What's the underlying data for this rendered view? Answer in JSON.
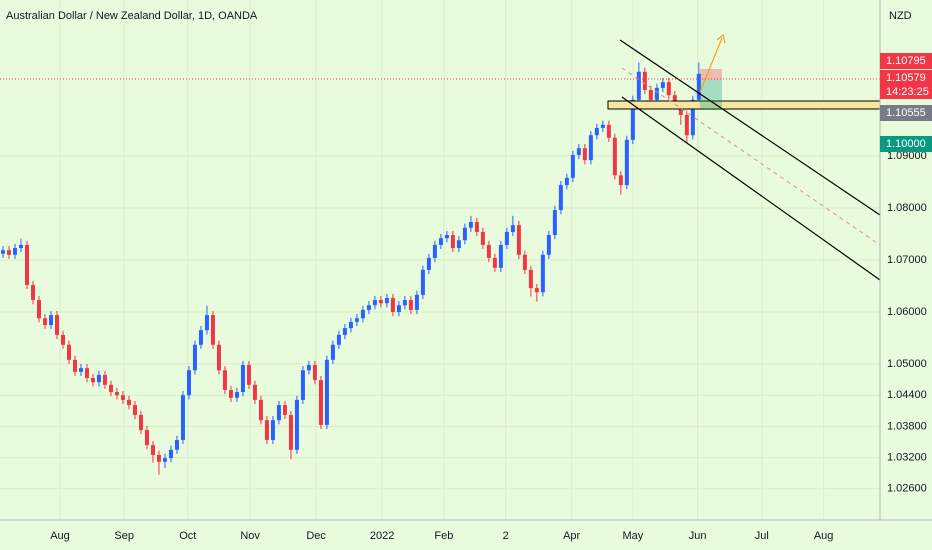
{
  "chart_data": {
    "type": "candlestick",
    "title": "Australian Dollar / New Zealand Dollar, 1D, OANDA",
    "y_axis_label": "NZD",
    "price_tags": [
      "1.10795",
      "1.10579",
      "14:23:25",
      "1.10555",
      "1.10000"
    ],
    "up_color": "#2962ff",
    "down_color": "#f23645",
    "grid": true,
    "ylim": [
      1.02,
      1.12
    ],
    "yticks": [
      {
        "value": 1.026,
        "label": "1.02600"
      },
      {
        "value": 1.032,
        "label": "1.03200"
      },
      {
        "value": 1.038,
        "label": "1.03800"
      },
      {
        "value": 1.044,
        "label": "1.04400"
      },
      {
        "value": 1.05,
        "label": "1.05000"
      },
      {
        "value": 1.06,
        "label": "1.06000"
      },
      {
        "value": 1.07,
        "label": "1.07000"
      },
      {
        "value": 1.08,
        "label": "1.08000"
      },
      {
        "value": 1.09,
        "label": "1.09000"
      }
    ],
    "xlim": [
      0,
      146.7
    ],
    "xticks": [
      {
        "value": 10,
        "label": "Aug"
      },
      {
        "value": 20.7,
        "label": "Sep"
      },
      {
        "value": 31.3,
        "label": "Oct"
      },
      {
        "value": 41.7,
        "label": "Nov"
      },
      {
        "value": 52.7,
        "label": "Dec"
      },
      {
        "value": 63.7,
        "label": "2022"
      },
      {
        "value": 74,
        "label": "Feb"
      },
      {
        "value": 84.3,
        "label": "2"
      },
      {
        "value": 95.3,
        "label": "Apr"
      },
      {
        "value": 105.5,
        "label": "May"
      },
      {
        "value": 116.3,
        "label": "Jun"
      },
      {
        "value": 127,
        "label": "Jul"
      },
      {
        "value": 137.3,
        "label": "Aug"
      }
    ],
    "candles": [
      [
        1.0712,
        1.0727,
        1.0704,
        1.0719
      ],
      [
        1.0719,
        1.0727,
        1.0702,
        1.071
      ],
      [
        1.071,
        1.0731,
        1.0702,
        1.0723
      ],
      [
        1.0723,
        1.0741,
        1.0715,
        1.0729
      ],
      [
        1.0729,
        1.0737,
        1.0644,
        1.0652
      ],
      [
        1.0652,
        1.066,
        1.0615,
        1.0623
      ],
      [
        1.0623,
        1.0631,
        1.058,
        1.0588
      ],
      [
        1.0588,
        1.0596,
        1.0567,
        1.0575
      ],
      [
        1.0575,
        1.0602,
        1.0567,
        1.0594
      ],
      [
        1.0594,
        1.0602,
        1.0548,
        1.0556
      ],
      [
        1.0556,
        1.0564,
        1.0529,
        1.0537
      ],
      [
        1.0537,
        1.0545,
        1.05,
        1.0508
      ],
      [
        1.0508,
        1.0516,
        1.0477,
        1.0485
      ],
      [
        1.0485,
        1.05,
        1.0477,
        1.0492
      ],
      [
        1.0492,
        1.05,
        1.0465,
        1.0473
      ],
      [
        1.0473,
        1.0481,
        1.0457,
        1.0465
      ],
      [
        1.0465,
        1.0487,
        1.0457,
        1.0479
      ],
      [
        1.0479,
        1.0487,
        1.0452,
        1.046
      ],
      [
        1.046,
        1.0468,
        1.0438,
        1.0446
      ],
      [
        1.0446,
        1.0454,
        1.0432,
        1.044
      ],
      [
        1.044,
        1.0448,
        1.0423,
        1.0431
      ],
      [
        1.0431,
        1.0439,
        1.0413,
        1.0421
      ],
      [
        1.0421,
        1.0429,
        1.0394,
        1.0402
      ],
      [
        1.0402,
        1.041,
        1.0365,
        1.0373
      ],
      [
        1.0373,
        1.0381,
        1.0336,
        1.0344
      ],
      [
        1.0344,
        1.0352,
        1.031,
        1.0325
      ],
      [
        1.0325,
        1.0333,
        1.0287,
        1.0312
      ],
      [
        1.0312,
        1.0327,
        1.03,
        1.0319
      ],
      [
        1.0319,
        1.0343,
        1.0311,
        1.0335
      ],
      [
        1.0335,
        1.0362,
        1.0327,
        1.0354
      ],
      [
        1.0354,
        1.0448,
        1.0346,
        1.044
      ],
      [
        1.044,
        1.0496,
        1.0432,
        1.0488
      ],
      [
        1.0488,
        1.0545,
        1.048,
        1.0537
      ],
      [
        1.0537,
        1.0573,
        1.0529,
        1.0565
      ],
      [
        1.0565,
        1.0612,
        1.0557,
        1.0594
      ],
      [
        1.0594,
        1.0602,
        1.0529,
        1.0537
      ],
      [
        1.0537,
        1.0545,
        1.048,
        1.0488
      ],
      [
        1.0488,
        1.0496,
        1.0442,
        1.045
      ],
      [
        1.045,
        1.0458,
        1.0427,
        1.0435
      ],
      [
        1.0435,
        1.0454,
        1.0427,
        1.0446
      ],
      [
        1.0446,
        1.0506,
        1.0438,
        1.0498
      ],
      [
        1.0498,
        1.0506,
        1.0452,
        1.046
      ],
      [
        1.046,
        1.0468,
        1.0423,
        1.0431
      ],
      [
        1.0431,
        1.0439,
        1.0384,
        1.0392
      ],
      [
        1.0392,
        1.04,
        1.0346,
        1.0354
      ],
      [
        1.0354,
        1.04,
        1.0346,
        1.0392
      ],
      [
        1.0392,
        1.0429,
        1.0384,
        1.0421
      ],
      [
        1.0421,
        1.0429,
        1.0394,
        1.0402
      ],
      [
        1.0402,
        1.041,
        1.0317,
        1.0335
      ],
      [
        1.0335,
        1.0439,
        1.0327,
        1.0431
      ],
      [
        1.0431,
        1.0496,
        1.0423,
        1.0488
      ],
      [
        1.0488,
        1.0506,
        1.048,
        1.0498
      ],
      [
        1.0498,
        1.0506,
        1.0461,
        1.0469
      ],
      [
        1.0469,
        1.0477,
        1.0375,
        1.0383
      ],
      [
        1.0383,
        1.0516,
        1.0375,
        1.0508
      ],
      [
        1.0508,
        1.0545,
        1.05,
        1.0537
      ],
      [
        1.0537,
        1.0564,
        1.0529,
        1.0556
      ],
      [
        1.0556,
        1.0577,
        1.0548,
        1.0569
      ],
      [
        1.0569,
        1.0589,
        1.0561,
        1.0581
      ],
      [
        1.0581,
        1.0596,
        1.0573,
        1.0588
      ],
      [
        1.0588,
        1.0612,
        1.058,
        1.0604
      ],
      [
        1.0604,
        1.0621,
        1.0596,
        1.0613
      ],
      [
        1.0613,
        1.0631,
        1.0605,
        1.0623
      ],
      [
        1.0623,
        1.0631,
        1.0609,
        1.0617
      ],
      [
        1.0617,
        1.0635,
        1.0609,
        1.0627
      ],
      [
        1.0627,
        1.0635,
        1.0592,
        1.06
      ],
      [
        1.06,
        1.0621,
        1.0592,
        1.0613
      ],
      [
        1.0613,
        1.0631,
        1.0605,
        1.0623
      ],
      [
        1.0623,
        1.0631,
        1.0596,
        1.0604
      ],
      [
        1.0604,
        1.0641,
        1.0596,
        1.0633
      ],
      [
        1.0633,
        1.0689,
        1.0625,
        1.0681
      ],
      [
        1.0681,
        1.0712,
        1.0673,
        1.0704
      ],
      [
        1.0704,
        1.0737,
        1.0696,
        1.0729
      ],
      [
        1.0729,
        1.075,
        1.0721,
        1.0742
      ],
      [
        1.0742,
        1.0756,
        1.0734,
        1.0748
      ],
      [
        1.0748,
        1.0756,
        1.0715,
        1.0723
      ],
      [
        1.0723,
        1.0746,
        1.0715,
        1.0738
      ],
      [
        1.0738,
        1.077,
        1.073,
        1.0762
      ],
      [
        1.0762,
        1.0785,
        1.0754,
        1.0773
      ],
      [
        1.0773,
        1.0781,
        1.0746,
        1.0754
      ],
      [
        1.0754,
        1.0762,
        1.0721,
        1.0729
      ],
      [
        1.0729,
        1.0737,
        1.0696,
        1.0704
      ],
      [
        1.0704,
        1.0712,
        1.0677,
        1.0685
      ],
      [
        1.0685,
        1.0737,
        1.0677,
        1.0729
      ],
      [
        1.0729,
        1.0762,
        1.0721,
        1.0754
      ],
      [
        1.0754,
        1.0785,
        1.0746,
        1.0767
      ],
      [
        1.0767,
        1.0775,
        1.0702,
        1.071
      ],
      [
        1.071,
        1.0718,
        1.0673,
        1.0681
      ],
      [
        1.0681,
        1.0689,
        1.063,
        1.0646
      ],
      [
        1.0646,
        1.0654,
        1.062,
        1.0638
      ],
      [
        1.0638,
        1.0718,
        1.063,
        1.071
      ],
      [
        1.071,
        1.0756,
        1.0702,
        1.0748
      ],
      [
        1.0748,
        1.0804,
        1.074,
        1.0796
      ],
      [
        1.0796,
        1.0852,
        1.0788,
        1.0844
      ],
      [
        1.0844,
        1.0866,
        1.0836,
        1.0858
      ],
      [
        1.0858,
        1.091,
        1.085,
        1.0902
      ],
      [
        1.0902,
        1.0923,
        1.0894,
        1.0915
      ],
      [
        1.0915,
        1.0923,
        1.0884,
        1.0892
      ],
      [
        1.0892,
        1.0948,
        1.0884,
        1.094
      ],
      [
        1.094,
        1.0962,
        1.0932,
        1.0954
      ],
      [
        1.0954,
        1.0968,
        1.0946,
        1.096
      ],
      [
        1.096,
        1.0968,
        1.0927,
        1.0935
      ],
      [
        1.0935,
        1.0943,
        1.0855,
        1.0863
      ],
      [
        1.0863,
        1.0871,
        1.0826,
        1.0844
      ],
      [
        1.0844,
        1.0939,
        1.0836,
        1.0931
      ],
      [
        1.0931,
        1.1016,
        1.0923,
        1.1008
      ],
      [
        1.1008,
        1.108,
        1.1,
        1.1062
      ],
      [
        1.1062,
        1.107,
        1.1019,
        1.1027
      ],
      [
        1.1027,
        1.1035,
        1.099,
        1.1008
      ],
      [
        1.1008,
        1.1039,
        1.1,
        1.1031
      ],
      [
        1.1031,
        1.105,
        1.1023,
        1.1042
      ],
      [
        1.1042,
        1.105,
        1.1009,
        1.1017
      ],
      [
        1.1017,
        1.1025,
        1.099,
        1.0998
      ],
      [
        1.0998,
        1.1006,
        1.096,
        1.0979
      ],
      [
        1.0979,
        1.0987,
        1.0925,
        1.094
      ],
      [
        1.094,
        1.1016,
        1.0932,
        1.1008
      ],
      [
        1.1008,
        1.108,
        1.1,
        1.1058
      ]
    ]
  }
}
